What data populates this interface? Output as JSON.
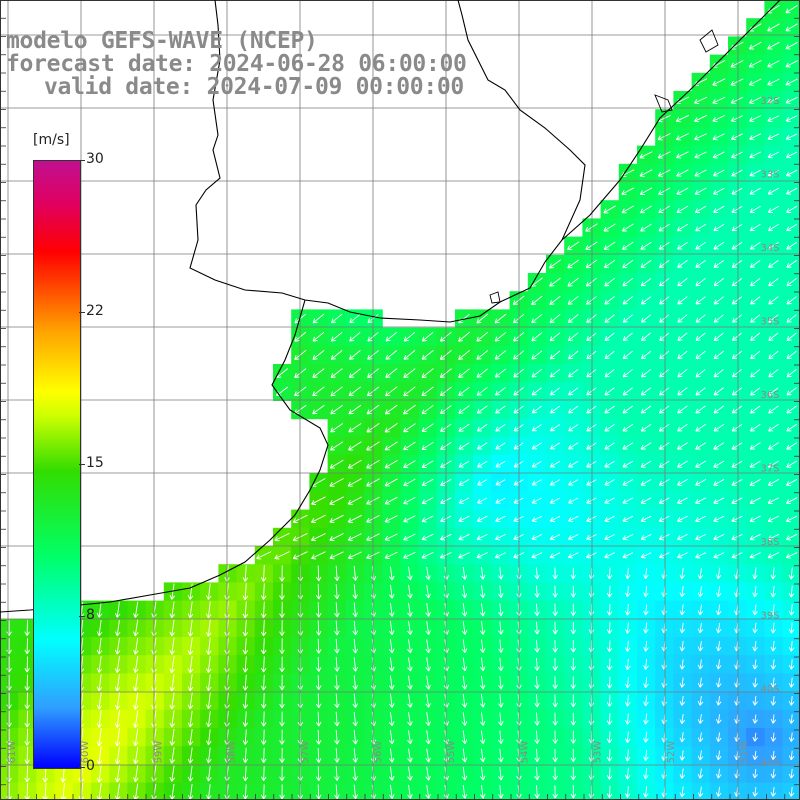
{
  "title": {
    "line1": "modelo GEFS-WAVE (NCEP)",
    "line2": "forecast date: 2024-06-28 06:00:00",
    "line3": "valid date: 2024-07-09 00:00:00"
  },
  "colorbar": {
    "unit": "[m/s]",
    "ticks": [
      "30",
      "22",
      "15",
      "8",
      "0"
    ],
    "range": [
      0,
      30
    ]
  },
  "map": {
    "lat_labels": [
      "32S",
      "33S",
      "34S",
      "35S",
      "36S",
      "37S",
      "38S",
      "39S",
      "40S",
      "41S"
    ],
    "lon_labels": [
      "61W",
      "60W",
      "59W",
      "58W",
      "57W",
      "56W",
      "55W",
      "54W",
      "53W",
      "52W",
      "51W"
    ],
    "region": "Rio de la Plata / South Atlantic",
    "field": "wind speed",
    "colors": {
      "land": "#ffffff",
      "grid": "#7a7a7a",
      "coast": "#000000",
      "arrows": "#ffffff",
      "labels": "#8a8a8a"
    }
  }
}
